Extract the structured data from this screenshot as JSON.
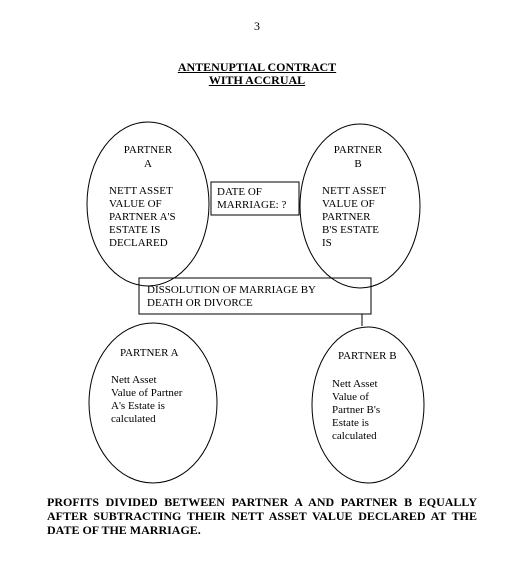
{
  "page_number": "3",
  "title": {
    "line1": "ANTENUPTIAL CONTRACT",
    "line2": "WITH ACCRUAL"
  },
  "partner_a_top": {
    "name_line1": "PARTNER",
    "name_line2": "A",
    "body": [
      "NETT ASSET",
      "VALUE OF",
      "PARTNER A'S",
      "ESTATE IS",
      "DECLARED"
    ]
  },
  "partner_b_top": {
    "name_line1": "PARTNER",
    "name_line2": "B",
    "body": [
      "NETT ASSET",
      "VALUE OF",
      "PARTNER",
      "B'S ESTATE",
      "IS"
    ]
  },
  "date_box": {
    "line1": "DATE OF",
    "line2": "MARRIAGE: ?"
  },
  "dissolution_box": {
    "line1": "DISSOLUTION OF MARRIAGE BY",
    "line2": "DEATH OR DIVORCE"
  },
  "partner_a_bottom": {
    "name": "PARTNER A",
    "body": [
      "Nett Asset",
      "Value of Partner",
      "A's Estate is",
      "calculated"
    ]
  },
  "partner_b_bottom": {
    "name": "PARTNER B",
    "body": [
      "Nett Asset",
      "Value of",
      "Partner B's",
      "Estate is",
      "calculated"
    ]
  },
  "footer": "PROFITS DIVIDED BETWEEN PARTNER A AND PARTNER B EQUALLY AFTER SUBTRACTING THEIR NETT ASSET VALUE DECLARED AT THE DATE OF THE MARRIAGE."
}
